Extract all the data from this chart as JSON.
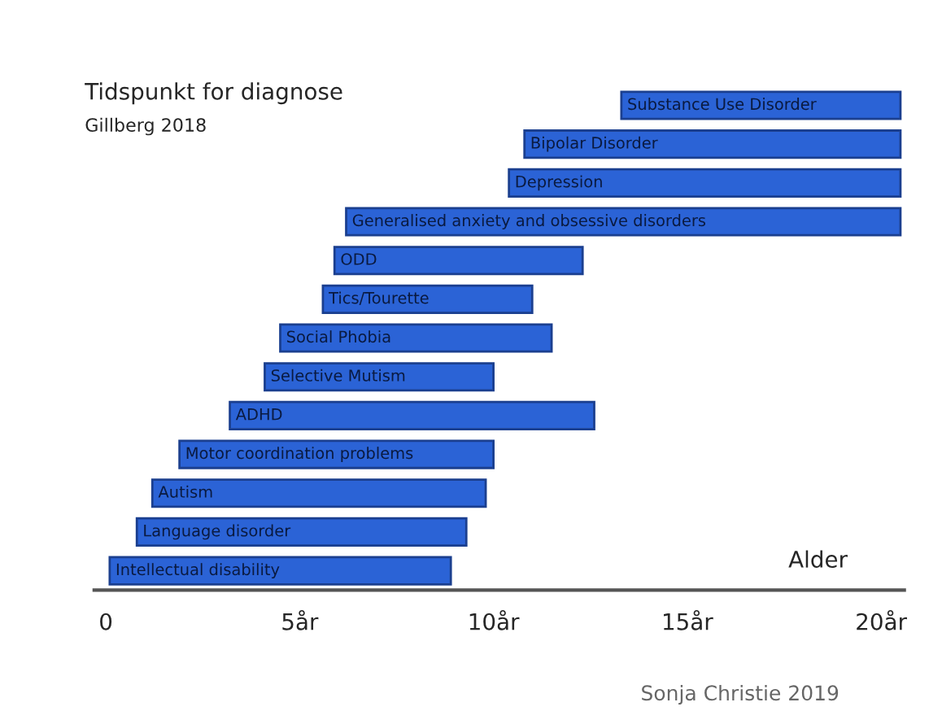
{
  "chart_data": {
    "type": "bar",
    "orientation": "horizontal",
    "title": "Tidspunkt for diagnose",
    "subtitle": "Gillberg 2018",
    "xlabel": "Alder",
    "categories": [
      "Substance Use Disorder",
      "Bipolar Disorder",
      "Depression",
      "Generalised anxiety and obsessive disorders",
      "ODD",
      "Tics/Tourette",
      "Social Phobia",
      "Selective Mutism",
      "ADHD",
      "Motor coordination problems",
      "Autism",
      "Language disorder",
      "Intellectual disability"
    ],
    "base": [
      13.3,
      10.8,
      10.4,
      6.2,
      5.9,
      5.6,
      4.5,
      4.1,
      3.2,
      1.9,
      1.2,
      0.8,
      0.1
    ],
    "values": [
      7.2,
      9.7,
      10.1,
      14.3,
      6.4,
      5.4,
      7.0,
      5.9,
      9.4,
      8.1,
      8.6,
      8.5,
      8.8
    ],
    "color": "#2b63d6",
    "xlim": [
      -0.3,
      20.6
    ],
    "xticks": [
      0,
      {
        "value": 5,
        "label": "5år"
      },
      {
        "value": 10,
        "label": "10år"
      },
      {
        "value": 15,
        "label": "15år"
      },
      {
        "value": 20,
        "label": "20år"
      }
    ],
    "tick_labels": "x",
    "grid": false,
    "legend": false,
    "annotations": [
      "Sonja Christie 2019"
    ]
  }
}
